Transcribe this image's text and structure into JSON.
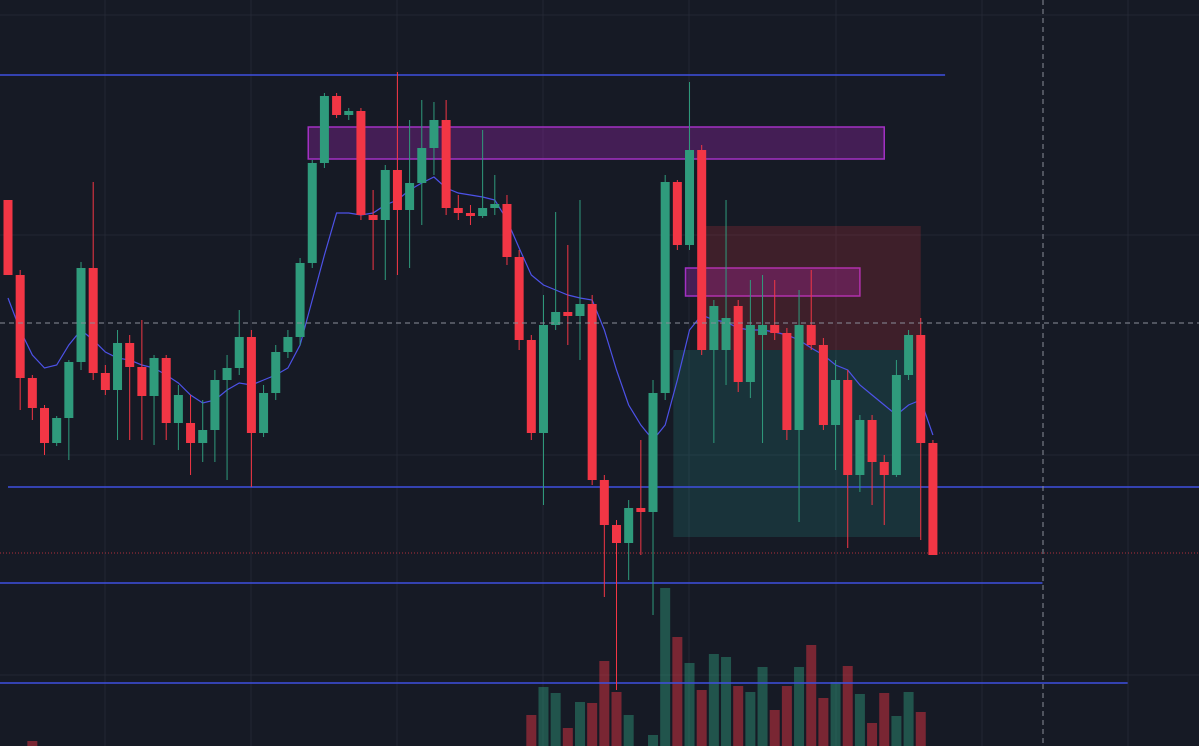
{
  "chart_data": {
    "type": "candlestick",
    "open": [
      546,
      471,
      368,
      338,
      303,
      328,
      384,
      478,
      373,
      356,
      403,
      379,
      350,
      388,
      323,
      323,
      303,
      316,
      366,
      378,
      409,
      313,
      353,
      394,
      409,
      483,
      583,
      650,
      631,
      635,
      531,
      526,
      576,
      536,
      563,
      598,
      626,
      538,
      533,
      530,
      538,
      542,
      489,
      406,
      313,
      421,
      434,
      430,
      442,
      266,
      221,
      203,
      238,
      234,
      353,
      564,
      501,
      596,
      396,
      396,
      440,
      364,
      411,
      421,
      413,
      316,
      421,
      401,
      321,
      366,
      271,
      326,
      284,
      271,
      371,
      411,
      303
    ],
    "high": [
      546,
      476,
      371,
      341,
      330,
      386,
      484,
      564,
      381,
      416,
      411,
      426,
      391,
      391,
      361,
      351,
      346,
      376,
      391,
      436,
      416,
      361,
      401,
      416,
      488,
      586,
      653,
      653,
      638,
      638,
      556,
      581,
      674,
      626,
      646,
      644,
      646,
      551,
      541,
      616,
      571,
      551,
      496,
      411,
      451,
      534,
      501,
      546,
      451,
      271,
      226,
      246,
      306,
      366,
      571,
      566,
      664,
      601,
      446,
      546,
      446,
      466,
      471,
      466,
      418,
      456,
      476,
      408,
      386,
      376,
      331,
      331,
      291,
      386,
      416,
      428,
      306
    ],
    "low": [
      471,
      336,
      326,
      291,
      300,
      286,
      376,
      366,
      351,
      306,
      306,
      306,
      301,
      306,
      296,
      271,
      284,
      284,
      266,
      371,
      259,
      309,
      346,
      388,
      401,
      478,
      578,
      628,
      626,
      526,
      476,
      466,
      471,
      478,
      521,
      571,
      531,
      526,
      521,
      528,
      531,
      481,
      396,
      306,
      241,
      416,
      401,
      386,
      261,
      149,
      56,
      166,
      191,
      131,
      346,
      496,
      496,
      391,
      303,
      361,
      354,
      348,
      303,
      406,
      306,
      224,
      396,
      316,
      276,
      198,
      254,
      241,
      221,
      269,
      366,
      206,
      191
    ],
    "close": [
      471,
      368,
      338,
      303,
      328,
      384,
      478,
      373,
      356,
      403,
      379,
      350,
      388,
      323,
      351,
      303,
      316,
      366,
      378,
      409,
      313,
      353,
      394,
      409,
      483,
      583,
      650,
      631,
      635,
      531,
      526,
      576,
      536,
      563,
      598,
      626,
      538,
      533,
      530,
      538,
      542,
      489,
      406,
      313,
      421,
      434,
      430,
      442,
      266,
      221,
      203,
      238,
      234,
      353,
      564,
      501,
      596,
      396,
      440,
      428,
      364,
      421,
      421,
      413,
      316,
      421,
      401,
      321,
      366,
      271,
      326,
      284,
      271,
      371,
      411,
      303,
      191
    ],
    "volume": [
      0,
      0,
      5,
      0,
      0,
      0,
      0,
      0,
      0,
      0,
      0,
      0,
      0,
      0,
      0,
      0,
      0,
      0,
      0,
      0,
      0,
      0,
      0,
      0,
      0,
      0,
      0,
      0,
      0,
      0,
      0,
      0,
      0,
      0,
      0,
      0,
      0,
      0,
      0,
      0,
      0,
      0,
      0,
      31,
      59,
      53,
      18,
      44,
      43,
      85,
      54,
      31,
      0,
      11,
      158,
      109,
      83,
      56,
      92,
      89,
      60,
      54,
      79,
      36,
      60,
      79,
      101,
      48,
      64,
      80,
      52,
      23,
      53,
      30,
      54,
      34,
      0
    ],
    "ma": [
      448,
      416,
      391,
      378,
      381,
      401,
      416,
      406,
      394,
      388,
      386,
      381,
      378,
      371,
      363,
      351,
      343,
      346,
      356,
      363,
      361,
      366,
      371,
      378,
      401,
      446,
      491,
      533,
      533,
      531,
      533,
      541,
      546,
      556,
      563,
      569,
      558,
      553,
      551,
      549,
      546,
      526,
      498,
      471,
      461,
      456,
      451,
      448,
      446,
      416,
      376,
      341,
      321,
      306,
      321,
      366,
      416,
      431,
      426,
      424,
      418,
      416,
      416,
      414,
      411,
      406,
      398,
      391,
      381,
      376,
      361,
      351,
      341,
      331,
      341,
      346,
      311
    ],
    "ylim": [
      0,
      746
    ],
    "volume_ylim": [
      0,
      746
    ],
    "levels": [
      {
        "value": 671,
        "x_start": -1,
        "x_end": 77
      },
      {
        "value": 259,
        "x_start": 0,
        "x_end": 98
      },
      {
        "value": 163,
        "x_start": -1,
        "x_end": 85
      },
      {
        "value": 63,
        "x_start": -1,
        "x_end": 92
      }
    ],
    "zones": [
      {
        "top": 619,
        "bottom": 587,
        "x_start": 25,
        "x_end": 72,
        "kind": "purple"
      },
      {
        "top": 478,
        "bottom": 450,
        "x_start": 56,
        "x_end": 70,
        "kind": "purple"
      },
      {
        "top": 520,
        "bottom": 396,
        "x_start": 57,
        "x_end": 75,
        "kind": "red"
      },
      {
        "top": 396,
        "bottom": 209,
        "x_start": 55,
        "x_end": 75,
        "kind": "green"
      }
    ],
    "marker_line": 193,
    "up_color": "#2f9b7c",
    "down_color": "#f23645",
    "ma_color": "#4d52e8",
    "level_color": "#3f4fe0"
  }
}
